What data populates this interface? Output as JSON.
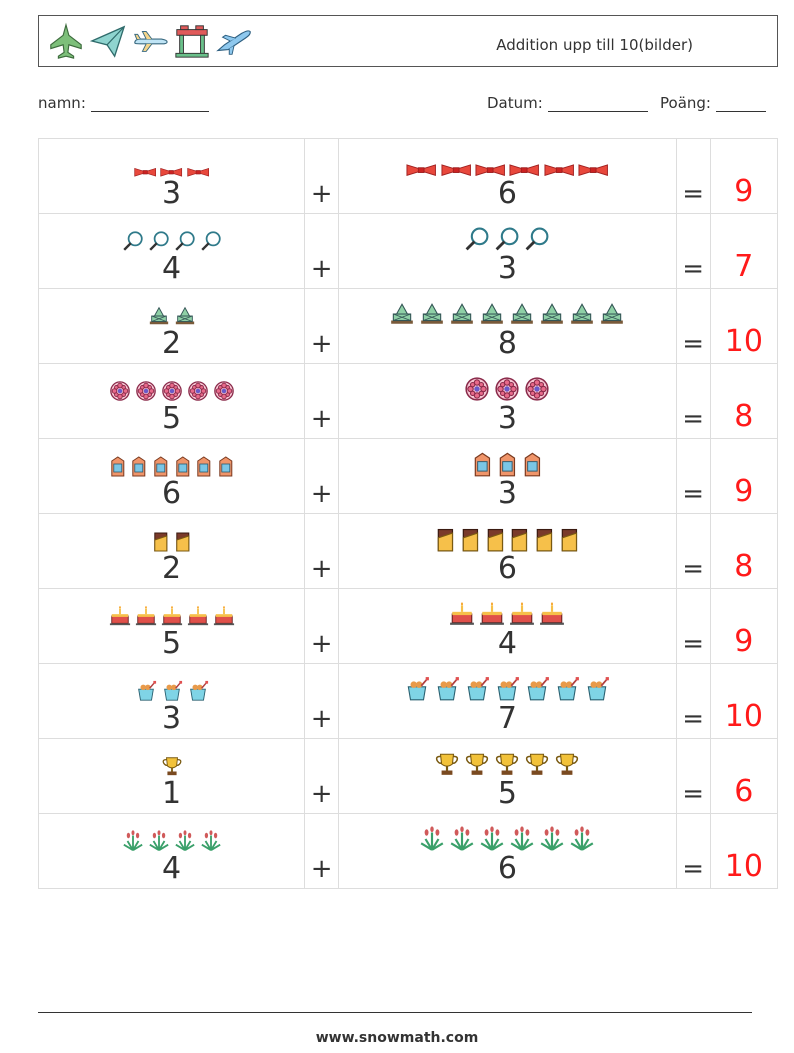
{
  "header": {
    "title": "Addition upp till 10(bilder)",
    "icons": [
      "fighter-jet-icon",
      "paper-plane-icon",
      "airplane-icon",
      "airport-gate-icon",
      "plane-icon"
    ]
  },
  "meta": {
    "name_label": "namn:",
    "date_label": "Datum:",
    "score_label": "Poäng:"
  },
  "rows": [
    {
      "a": "3",
      "a_icon": "bow-tie",
      "b": "6",
      "b_icon": "bow-tie",
      "plus": "+",
      "eq": "=",
      "answer": "9"
    },
    {
      "a": "4",
      "a_icon": "magnifier",
      "b": "3",
      "b_icon": "magnifier",
      "plus": "+",
      "eq": "=",
      "answer": "7"
    },
    {
      "a": "2",
      "a_icon": "ship",
      "b": "8",
      "b_icon": "ship",
      "plus": "+",
      "eq": "=",
      "answer": "10"
    },
    {
      "a": "5",
      "a_icon": "flower",
      "b": "3",
      "b_icon": "flower",
      "plus": "+",
      "eq": "=",
      "answer": "8"
    },
    {
      "a": "6",
      "a_icon": "milk-carton",
      "b": "3",
      "b_icon": "milk-carton",
      "plus": "+",
      "eq": "=",
      "answer": "9"
    },
    {
      "a": "2",
      "a_icon": "chocolate",
      "b": "6",
      "b_icon": "chocolate",
      "plus": "+",
      "eq": "=",
      "answer": "8"
    },
    {
      "a": "5",
      "a_icon": "cake",
      "b": "4",
      "b_icon": "cake",
      "plus": "+",
      "eq": "=",
      "answer": "9"
    },
    {
      "a": "3",
      "a_icon": "bucket",
      "b": "7",
      "b_icon": "bucket",
      "plus": "+",
      "eq": "=",
      "answer": "10"
    },
    {
      "a": "1",
      "a_icon": "trophy",
      "b": "5",
      "b_icon": "trophy",
      "plus": "+",
      "eq": "=",
      "answer": "6"
    },
    {
      "a": "4",
      "a_icon": "plant",
      "b": "6",
      "b_icon": "plant",
      "plus": "+",
      "eq": "=",
      "answer": "10"
    }
  ],
  "footer": "www.snowmath.com"
}
